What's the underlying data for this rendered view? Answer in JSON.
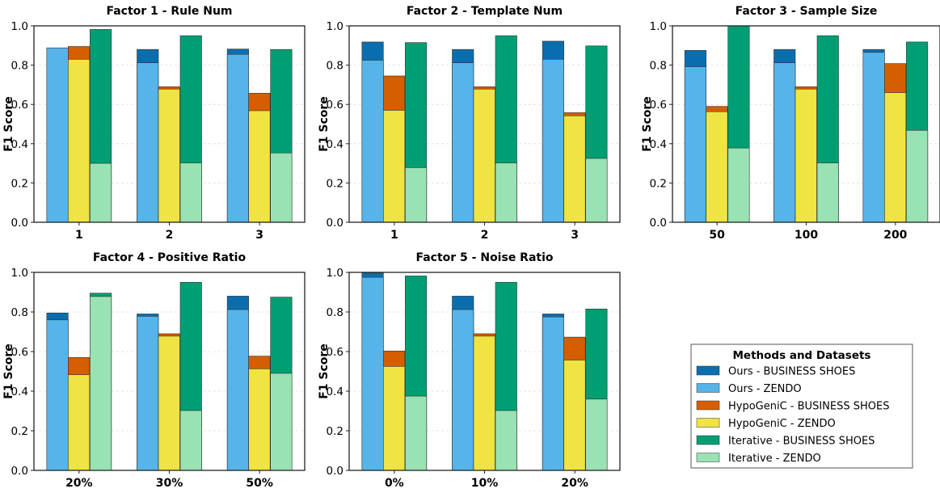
{
  "colors": {
    "ours_business": "#0A6EAE",
    "ours_zendo": "#56B4E9",
    "hypo_business": "#D55E00",
    "hypo_zendo": "#F0E442",
    "iter_business": "#009E73",
    "iter_zendo": "#99E2B4"
  },
  "shared": {
    "ylabel": "F1 Score",
    "yticks": [
      "0.0",
      "0.2",
      "0.4",
      "0.6",
      "0.8",
      "1.0"
    ],
    "ylim": [
      0,
      1
    ]
  },
  "legend": {
    "title": "Methods and Datasets",
    "items": [
      {
        "label": "Ours - BUSINESS SHOES",
        "color": "#0A6EAE"
      },
      {
        "label": "Ours - ZENDO",
        "color": "#56B4E9"
      },
      {
        "label": "HypoGeniC - BUSINESS SHOES",
        "color": "#D55E00"
      },
      {
        "label": "HypoGeniC - ZENDO",
        "color": "#F0E442"
      },
      {
        "label": "Iterative - BUSINESS SHOES",
        "color": "#009E73"
      },
      {
        "label": "Iterative - ZENDO",
        "color": "#99E2B4"
      }
    ]
  },
  "chart_data": [
    {
      "type": "bar",
      "title": "Factor 1 - Rule Num",
      "ylabel": "F1 Score",
      "ylim": [
        0,
        1
      ],
      "categories": [
        "1",
        "2",
        "3"
      ],
      "series": [
        {
          "name": "Ours - BUSINESS SHOES",
          "values": [
            0.885,
            0.88,
            0.882
          ]
        },
        {
          "name": "Ours - ZENDO",
          "values": [
            0.888,
            0.812,
            0.855
          ]
        },
        {
          "name": "HypoGeniC - BUSINESS SHOES",
          "values": [
            0.895,
            0.69,
            0.657
          ]
        },
        {
          "name": "HypoGeniC - ZENDO",
          "values": [
            0.83,
            0.678,
            0.568
          ]
        },
        {
          "name": "Iterative - BUSINESS SHOES",
          "values": [
            0.982,
            0.95,
            0.88
          ]
        },
        {
          "name": "Iterative - ZENDO",
          "values": [
            0.3,
            0.302,
            0.353
          ]
        }
      ]
    },
    {
      "type": "bar",
      "title": "Factor 2 - Template Num",
      "ylabel": "F1 Score",
      "ylim": [
        0,
        1
      ],
      "categories": [
        "1",
        "2",
        "3"
      ],
      "series": [
        {
          "name": "Ours - BUSINESS SHOES",
          "values": [
            0.918,
            0.88,
            0.922
          ]
        },
        {
          "name": "Ours - ZENDO",
          "values": [
            0.825,
            0.812,
            0.83
          ]
        },
        {
          "name": "HypoGeniC - BUSINESS SHOES",
          "values": [
            0.745,
            0.69,
            0.558
          ]
        },
        {
          "name": "HypoGeniC - ZENDO",
          "values": [
            0.57,
            0.678,
            0.542
          ]
        },
        {
          "name": "Iterative - BUSINESS SHOES",
          "values": [
            0.915,
            0.95,
            0.898
          ]
        },
        {
          "name": "Iterative - ZENDO",
          "values": [
            0.278,
            0.302,
            0.325
          ]
        }
      ]
    },
    {
      "type": "bar",
      "title": "Factor 3 - Sample Size",
      "ylabel": "F1 Score",
      "ylim": [
        0,
        1
      ],
      "categories": [
        "50",
        "100",
        "200"
      ],
      "series": [
        {
          "name": "Ours - BUSINESS SHOES",
          "values": [
            0.875,
            0.88,
            0.88
          ]
        },
        {
          "name": "Ours - ZENDO",
          "values": [
            0.792,
            0.812,
            0.865
          ]
        },
        {
          "name": "HypoGeniC - BUSINESS SHOES",
          "values": [
            0.59,
            0.69,
            0.808
          ]
        },
        {
          "name": "HypoGeniC - ZENDO",
          "values": [
            0.563,
            0.678,
            0.66
          ]
        },
        {
          "name": "Iterative - BUSINESS SHOES",
          "values": [
            1.0,
            0.95,
            0.918
          ]
        },
        {
          "name": "Iterative - ZENDO",
          "values": [
            0.378,
            0.302,
            0.468
          ]
        }
      ]
    },
    {
      "type": "bar",
      "title": "Factor 4 - Positive Ratio",
      "ylabel": "F1 Score",
      "ylim": [
        0,
        1
      ],
      "categories": [
        "20%",
        "30%",
        "50%"
      ],
      "series": [
        {
          "name": "Ours - BUSINESS SHOES",
          "values": [
            0.795,
            0.79,
            0.88
          ]
        },
        {
          "name": "Ours - ZENDO",
          "values": [
            0.76,
            0.778,
            0.812
          ]
        },
        {
          "name": "HypoGeniC - BUSINESS SHOES",
          "values": [
            0.57,
            0.69,
            0.577
          ]
        },
        {
          "name": "HypoGeniC - ZENDO",
          "values": [
            0.483,
            0.678,
            0.513
          ]
        },
        {
          "name": "Iterative - BUSINESS SHOES",
          "values": [
            0.895,
            0.95,
            0.875
          ]
        },
        {
          "name": "Iterative - ZENDO",
          "values": [
            0.878,
            0.302,
            0.49
          ]
        }
      ]
    },
    {
      "type": "bar",
      "title": "Factor 5 - Noise Ratio",
      "ylabel": "F1 Score",
      "ylim": [
        0,
        1
      ],
      "categories": [
        "0%",
        "10%",
        "20%"
      ],
      "series": [
        {
          "name": "Ours - BUSINESS SHOES",
          "values": [
            0.998,
            0.88,
            0.79
          ]
        },
        {
          "name": "Ours - ZENDO",
          "values": [
            0.975,
            0.812,
            0.775
          ]
        },
        {
          "name": "HypoGeniC - BUSINESS SHOES",
          "values": [
            0.603,
            0.69,
            0.673
          ]
        },
        {
          "name": "HypoGeniC - ZENDO",
          "values": [
            0.525,
            0.678,
            0.557
          ]
        },
        {
          "name": "Iterative - BUSINESS SHOES",
          "values": [
            0.982,
            0.95,
            0.815
          ]
        },
        {
          "name": "Iterative - ZENDO",
          "values": [
            0.375,
            0.302,
            0.36
          ]
        }
      ]
    }
  ]
}
